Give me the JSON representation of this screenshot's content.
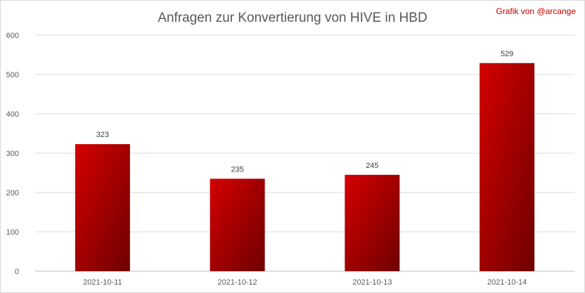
{
  "credit": "Grafik von @arcange",
  "chart_data": {
    "type": "bar",
    "title": "Anfragen zur Konvertierung von HIVE in HBD",
    "categories": [
      "2021-10-11",
      "2021-10-12",
      "2021-10-13",
      "2021-10-14"
    ],
    "values": [
      323,
      235,
      245,
      529
    ],
    "xlabel": "",
    "ylabel": "",
    "ylim": [
      0,
      600
    ],
    "yticks": [
      0,
      100,
      200,
      300,
      400,
      500,
      600
    ],
    "grid": true,
    "legend": "none",
    "colors": {
      "bar_light": "#d40000",
      "bar_dark": "#6e0000",
      "credit": "#c00000"
    }
  }
}
